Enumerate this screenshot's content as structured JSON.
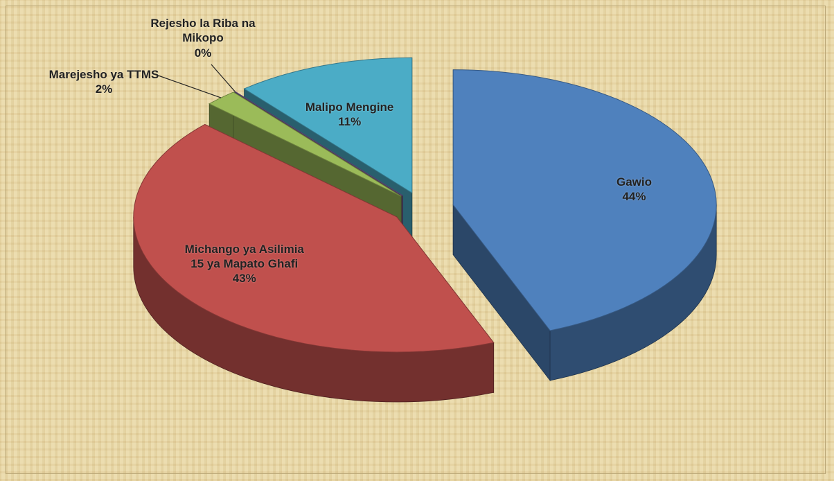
{
  "chart_data": {
    "type": "pie3d",
    "categories": [
      "Gawio",
      "Michango ya Asilimia 15 ya Mapato Ghafi",
      "Marejesho ya TTMS",
      "Rejesho la Riba na Mikopo",
      "Malipo Mengine"
    ],
    "values": [
      44,
      43,
      2,
      0,
      11
    ],
    "value_labels": [
      "44%",
      "43%",
      "2%",
      "0%",
      "11%"
    ],
    "colors": [
      "#4f81bd",
      "#c0504d",
      "#9bbb59",
      "#8064a2",
      "#4bacc6"
    ]
  }
}
